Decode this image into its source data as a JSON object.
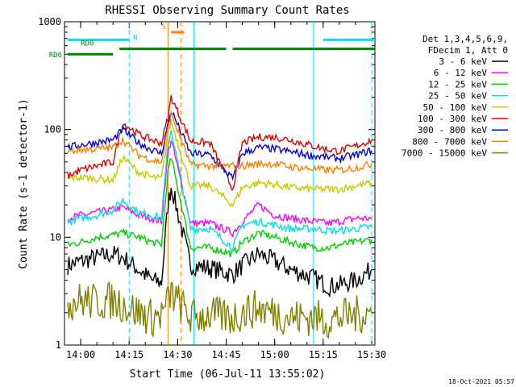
{
  "chart_data": {
    "type": "line",
    "title": "RHESSI Observing Summary Count Rates",
    "xlabel": "Start Time (06-Jul-11 13:55:02)",
    "ylabel": "Count Rate (s-1 detector-1)",
    "yscale": "log",
    "ylim": [
      1,
      1000
    ],
    "xlim": [
      "13:55",
      "15:31"
    ],
    "x_ticks": [
      "14:00",
      "14:15",
      "14:30",
      "14:45",
      "15:00",
      "15:15",
      "15:30"
    ],
    "y_ticks": [
      "1",
      "10",
      "100",
      "1000"
    ],
    "timestamp": "18-Oct-2021 05:57",
    "legend": {
      "position": "right",
      "header": [
        "Det 1,3,4,5,6,9,",
        "FDecim 1, Att 0"
      ]
    },
    "series": [
      {
        "name": "3 - 6 keV",
        "color": "#000000",
        "points": [
          [
            "13:56",
            5.5
          ],
          [
            "14:00",
            6
          ],
          [
            "14:05",
            6.5
          ],
          [
            "14:10",
            7
          ],
          [
            "14:13",
            6.5
          ],
          [
            "14:18",
            5
          ],
          [
            "14:22",
            4
          ],
          [
            "14:25",
            3.8
          ],
          [
            "14:27",
            20
          ],
          [
            "14:28",
            30
          ],
          [
            "14:34",
            5.5
          ],
          [
            "14:40",
            5.2
          ],
          [
            "14:47",
            4.5
          ],
          [
            "14:50",
            5.5
          ],
          [
            "14:55",
            7
          ],
          [
            "15:00",
            6
          ],
          [
            "15:05",
            5
          ],
          [
            "15:12",
            4.2
          ],
          [
            "15:17",
            3.5
          ],
          [
            "15:20",
            3.6
          ],
          [
            "15:25",
            4
          ],
          [
            "15:30",
            5
          ]
        ]
      },
      {
        "name": "6 - 12 keV",
        "color": "#ff00ff",
        "points": [
          [
            "13:56",
            15
          ],
          [
            "14:00",
            16
          ],
          [
            "14:05",
            17
          ],
          [
            "14:10",
            18
          ],
          [
            "14:13",
            19
          ],
          [
            "14:18",
            16
          ],
          [
            "14:22",
            15
          ],
          [
            "14:25",
            14
          ],
          [
            "14:27",
            60
          ],
          [
            "14:28",
            80
          ],
          [
            "14:34",
            13.5
          ],
          [
            "14:40",
            13.5
          ],
          [
            "14:47",
            11
          ],
          [
            "14:50",
            14
          ],
          [
            "14:55",
            20
          ],
          [
            "15:00",
            16
          ],
          [
            "15:05",
            15
          ],
          [
            "15:12",
            14
          ],
          [
            "15:17",
            13.5
          ],
          [
            "15:20",
            14
          ],
          [
            "15:25",
            15
          ],
          [
            "15:30",
            15
          ]
        ]
      },
      {
        "name": "12 - 25 keV",
        "color": "#00cc00",
        "points": [
          [
            "13:56",
            8.5
          ],
          [
            "14:00",
            9
          ],
          [
            "14:05",
            10
          ],
          [
            "14:10",
            10.5
          ],
          [
            "14:13",
            11
          ],
          [
            "14:18",
            10
          ],
          [
            "14:22",
            9
          ],
          [
            "14:25",
            8.5
          ],
          [
            "14:27",
            40
          ],
          [
            "14:28",
            55
          ],
          [
            "14:34",
            8
          ],
          [
            "14:40",
            8
          ],
          [
            "14:47",
            7
          ],
          [
            "14:50",
            9
          ],
          [
            "14:55",
            11
          ],
          [
            "15:00",
            10
          ],
          [
            "15:05",
            9
          ],
          [
            "15:12",
            8
          ],
          [
            "15:17",
            8
          ],
          [
            "15:20",
            8.5
          ],
          [
            "15:25",
            9
          ],
          [
            "15:30",
            9.5
          ]
        ]
      },
      {
        "name": "25 - 50 keV",
        "color": "#00e0e0",
        "points": [
          [
            "13:56",
            14
          ],
          [
            "14:00",
            15
          ],
          [
            "14:05",
            16
          ],
          [
            "14:10",
            18
          ],
          [
            "14:13",
            22
          ],
          [
            "14:18",
            17
          ],
          [
            "14:22",
            16
          ],
          [
            "14:25",
            15
          ],
          [
            "14:27",
            70
          ],
          [
            "14:28",
            100
          ],
          [
            "14:34",
            12
          ],
          [
            "14:40",
            12
          ],
          [
            "14:47",
            8
          ],
          [
            "14:50",
            13
          ],
          [
            "14:55",
            14
          ],
          [
            "15:00",
            13
          ],
          [
            "15:05",
            12
          ],
          [
            "15:12",
            12
          ],
          [
            "15:17",
            11.5
          ],
          [
            "15:20",
            11.5
          ],
          [
            "15:25",
            12
          ],
          [
            "15:30",
            12.5
          ]
        ]
      },
      {
        "name": "50 - 100 keV",
        "color": "#c8c800",
        "points": [
          [
            "13:56",
            35
          ],
          [
            "14:00",
            36
          ],
          [
            "14:05",
            35
          ],
          [
            "14:10",
            34
          ],
          [
            "14:13",
            55
          ],
          [
            "14:18",
            40
          ],
          [
            "14:22",
            36
          ],
          [
            "14:25",
            35
          ],
          [
            "14:27",
            90
          ],
          [
            "14:28",
            120
          ],
          [
            "14:34",
            30
          ],
          [
            "14:40",
            30
          ],
          [
            "14:47",
            20
          ],
          [
            "14:50",
            29
          ],
          [
            "14:55",
            32
          ],
          [
            "15:00",
            31
          ],
          [
            "15:05",
            29
          ],
          [
            "15:12",
            28
          ],
          [
            "15:17",
            28
          ],
          [
            "15:20",
            28
          ],
          [
            "15:25",
            30
          ],
          [
            "15:30",
            32
          ]
        ]
      },
      {
        "name": "100 - 300 keV",
        "color": "#e00000",
        "points": [
          [
            "13:56",
            37
          ],
          [
            "14:00",
            42
          ],
          [
            "14:05",
            46
          ],
          [
            "14:10",
            50
          ],
          [
            "14:13",
            115
          ],
          [
            "14:18",
            90
          ],
          [
            "14:22",
            80
          ],
          [
            "14:25",
            75
          ],
          [
            "14:27",
            130
          ],
          [
            "14:28",
            200
          ],
          [
            "14:34",
            78
          ],
          [
            "14:40",
            75
          ],
          [
            "14:47",
            28
          ],
          [
            "14:50",
            75
          ],
          [
            "14:55",
            85
          ],
          [
            "15:00",
            85
          ],
          [
            "15:05",
            80
          ],
          [
            "15:12",
            70
          ],
          [
            "15:17",
            65
          ],
          [
            "15:20",
            63
          ],
          [
            "15:25",
            70
          ],
          [
            "15:30",
            80
          ]
        ]
      },
      {
        "name": "300 - 800 keV",
        "color": "#0000e0",
        "points": [
          [
            "13:56",
            68
          ],
          [
            "14:00",
            72
          ],
          [
            "14:05",
            76
          ],
          [
            "14:10",
            80
          ],
          [
            "14:13",
            100
          ],
          [
            "14:18",
            75
          ],
          [
            "14:22",
            65
          ],
          [
            "14:25",
            60
          ],
          [
            "14:27",
            110
          ],
          [
            "14:28",
            150
          ],
          [
            "14:34",
            60
          ],
          [
            "14:40",
            58
          ],
          [
            "14:47",
            35
          ],
          [
            "14:50",
            60
          ],
          [
            "14:55",
            68
          ],
          [
            "15:00",
            66
          ],
          [
            "15:05",
            62
          ],
          [
            "15:12",
            57
          ],
          [
            "15:17",
            55
          ],
          [
            "15:20",
            54
          ],
          [
            "15:25",
            58
          ],
          [
            "15:30",
            64
          ]
        ]
      },
      {
        "name": "800 - 7000 keV",
        "color": "#ff8000",
        "points": [
          [
            "13:56",
            62
          ],
          [
            "14:00",
            65
          ],
          [
            "14:05",
            66
          ],
          [
            "14:10",
            68
          ],
          [
            "14:13",
            80
          ],
          [
            "14:18",
            58
          ],
          [
            "14:22",
            52
          ],
          [
            "14:25",
            50
          ],
          [
            "14:27",
            100
          ],
          [
            "14:28",
            140
          ],
          [
            "14:34",
            47
          ],
          [
            "14:40",
            46
          ],
          [
            "14:47",
            46
          ],
          [
            "14:50",
            46
          ],
          [
            "14:55",
            48
          ],
          [
            "15:00",
            48
          ],
          [
            "15:05",
            45
          ],
          [
            "15:12",
            43
          ],
          [
            "15:17",
            42
          ],
          [
            "15:20",
            42
          ],
          [
            "15:25",
            44
          ],
          [
            "15:30",
            48
          ]
        ]
      },
      {
        "name": "7000 - 15000 keV",
        "color": "#808000",
        "points": [
          [
            "13:56",
            2.5
          ],
          [
            "14:00",
            2.6
          ],
          [
            "14:05",
            2.5
          ],
          [
            "14:10",
            2.6
          ],
          [
            "14:13",
            2.4
          ],
          [
            "14:18",
            2
          ],
          [
            "14:22",
            1.8
          ],
          [
            "14:25",
            1.9
          ],
          [
            "14:27",
            2.5
          ],
          [
            "14:28",
            3
          ],
          [
            "14:34",
            1.8
          ],
          [
            "14:40",
            1.9
          ],
          [
            "14:47",
            1.8
          ],
          [
            "14:50",
            2
          ],
          [
            "14:55",
            2.2
          ],
          [
            "15:00",
            2
          ],
          [
            "15:05",
            1.8
          ],
          [
            "15:12",
            1.8
          ],
          [
            "15:17",
            1.7
          ],
          [
            "15:20",
            1.8
          ],
          [
            "15:25",
            1.9
          ],
          [
            "15:30",
            2
          ]
        ]
      }
    ],
    "flags": [
      {
        "label": "N",
        "color": "#00e0ff",
        "y": 680,
        "spans": [
          [
            "13:56",
            "14:15"
          ],
          [
            "15:15",
            "15:31"
          ]
        ]
      },
      {
        "label": "RD0",
        "color": "#008000",
        "y": 560,
        "spans": [
          [
            "14:12",
            "14:45"
          ],
          [
            "14:47",
            "15:31"
          ]
        ]
      },
      {
        "label": "RD6",
        "color": "#008000",
        "y": 500,
        "spans": [
          [
            "13:56",
            "14:10"
          ]
        ]
      },
      {
        "label": "S",
        "color": "#ff8000",
        "y": 800,
        "spans": [
          [
            "14:28",
            "14:32"
          ]
        ]
      }
    ],
    "vlines": [
      {
        "time": "14:15",
        "color": "#00e0ff",
        "style": "dashed"
      },
      {
        "time": "14:27",
        "color": "#ff8000",
        "style": "solid"
      },
      {
        "time": "14:31",
        "color": "#ff8000",
        "style": "dashed"
      },
      {
        "time": "14:35",
        "color": "#00e0ff",
        "style": "solid"
      },
      {
        "time": "15:12",
        "color": "#00e0ff",
        "style": "solid"
      },
      {
        "time": "15:30",
        "color": "#00e0ff",
        "style": "dashed"
      }
    ]
  }
}
